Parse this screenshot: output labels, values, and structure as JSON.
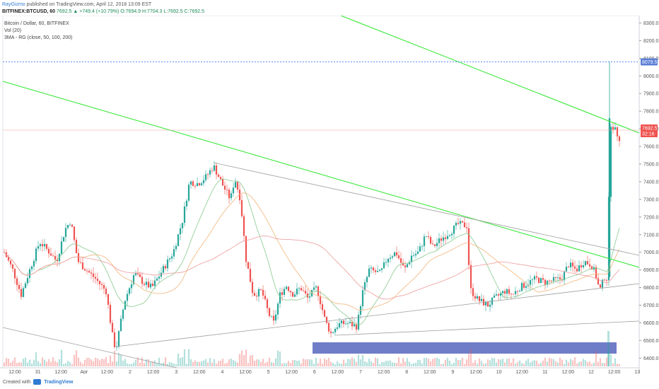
{
  "header": {
    "author": "RayGizmo",
    "published": "published on TradingView.com, April 12, 2018 13:09 EST",
    "symbol": "BITFINEX:BTCUSD, 60",
    "price": "7692.5",
    "change": "▲ +749.4 (+10.79%)",
    "ohlc": "O:7694.9 H:7704.3 L:7692.5 C:7692.5"
  },
  "legend": {
    "title": "Bitcoin / Dollar, 60, BITFINEX",
    "vol": "Vol (20)",
    "ma": "3MA - RG (close, 50, 100, 200)"
  },
  "footer": {
    "created_with": "Created with",
    "brand": "TradingView"
  },
  "colors": {
    "up": "#26a69a",
    "down": "#ef5350",
    "trend": "#3ce83c",
    "grey_trend": "#9e9e9e",
    "ma50": "#86c98c",
    "ma100": "#f2b47a",
    "ma200": "#ef9a9a",
    "dashed": "#2962ff",
    "vol_band": "#3f51b5"
  },
  "chart_data": {
    "type": "candlestick",
    "title": "Bitcoin / Dollar, 60, BITFINEX",
    "x_tick_labels": [
      "12:00",
      "31",
      "12:00",
      "Apr",
      "12:00",
      "2",
      "12:00",
      "3",
      "12:00",
      "4",
      "12:00",
      "5",
      "12:00",
      "6",
      "12:00",
      "7",
      "12:00",
      "8",
      "12:00",
      "9",
      "12:00",
      "10",
      "12:00",
      "11",
      "12:00",
      "12",
      "12:00",
      "13"
    ],
    "y_ticks": [
      6400,
      6500,
      6600,
      6700,
      6800,
      6900,
      7000,
      7100,
      7200,
      7300,
      7400,
      7500,
      7600,
      7700,
      7800,
      7900,
      8000,
      8100,
      8200,
      8300
    ],
    "ylim": [
      6340,
      8340
    ],
    "price_labels": {
      "dashed_high": "8079.5",
      "last": "7692.5",
      "countdown": "32:16"
    },
    "dashed_level": 8079.5,
    "last_price": 7692.5,
    "key_points": [
      {
        "x": "12:00 Mar 30",
        "low": 6640,
        "high": 7160
      },
      {
        "x": "Apr 1 12:00",
        "low": 6430,
        "high": 6800
      },
      {
        "x": "Apr 3 18:00",
        "low": 7300,
        "high": 7510
      },
      {
        "x": "Apr 5 06:00",
        "low": 6580,
        "high": 6880
      },
      {
        "x": "Apr 6 12:00",
        "low": 6500,
        "high": 6700
      },
      {
        "x": "Apr 8 06:00",
        "low": 6850,
        "high": 7060
      },
      {
        "x": "Apr 9 12:00",
        "low": 6950,
        "high": 7170
      },
      {
        "x": "Apr 10 00:00",
        "low": 6700,
        "high": 6800
      },
      {
        "x": "Apr 11 18:00",
        "low": 6780,
        "high": 6980
      },
      {
        "x": "Apr 12 12:00",
        "low": 6860,
        "high": 8079.5
      },
      {
        "x": "Apr 12 13:00",
        "close": 7692.5
      }
    ],
    "series": [
      {
        "name": "Vol (20)",
        "type": "histogram"
      },
      {
        "name": "3MA - RG (close, 50, 100, 200)",
        "type": "line"
      }
    ],
    "grid": false
  }
}
